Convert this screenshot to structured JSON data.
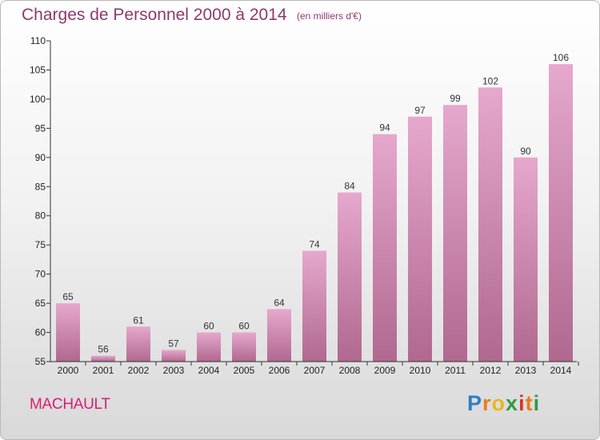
{
  "header": {
    "title": "Charges de Personnel 2000 à 2014",
    "subtitle": "(en milliers d'€)"
  },
  "footer": {
    "place": "MACHAULT",
    "logo_text": "Proxiti",
    "logo_colors": [
      "#2e7fc1",
      "#e87b1e",
      "#e8b820",
      "#2e9a45",
      "#d8352a",
      "#e87b1e",
      "#2e9a45"
    ]
  },
  "chart_data": {
    "type": "bar",
    "title": "Charges de Personnel 2000 à 2014",
    "subtitle": "(en milliers d'€)",
    "categories": [
      "2000",
      "2001",
      "2002",
      "2003",
      "2004",
      "2005",
      "2006",
      "2007",
      "2008",
      "2009",
      "2010",
      "2011",
      "2012",
      "2013",
      "2014"
    ],
    "values": [
      65,
      56,
      61,
      57,
      60,
      60,
      64,
      74,
      84,
      94,
      97,
      99,
      102,
      90,
      106
    ],
    "ylim": [
      55,
      110
    ],
    "yticks": [
      55,
      60,
      65,
      70,
      75,
      80,
      85,
      90,
      95,
      100,
      105,
      110
    ],
    "grid": false,
    "bar_color_top": "#e6a8cd",
    "bar_color_bottom": "#b0688f"
  }
}
